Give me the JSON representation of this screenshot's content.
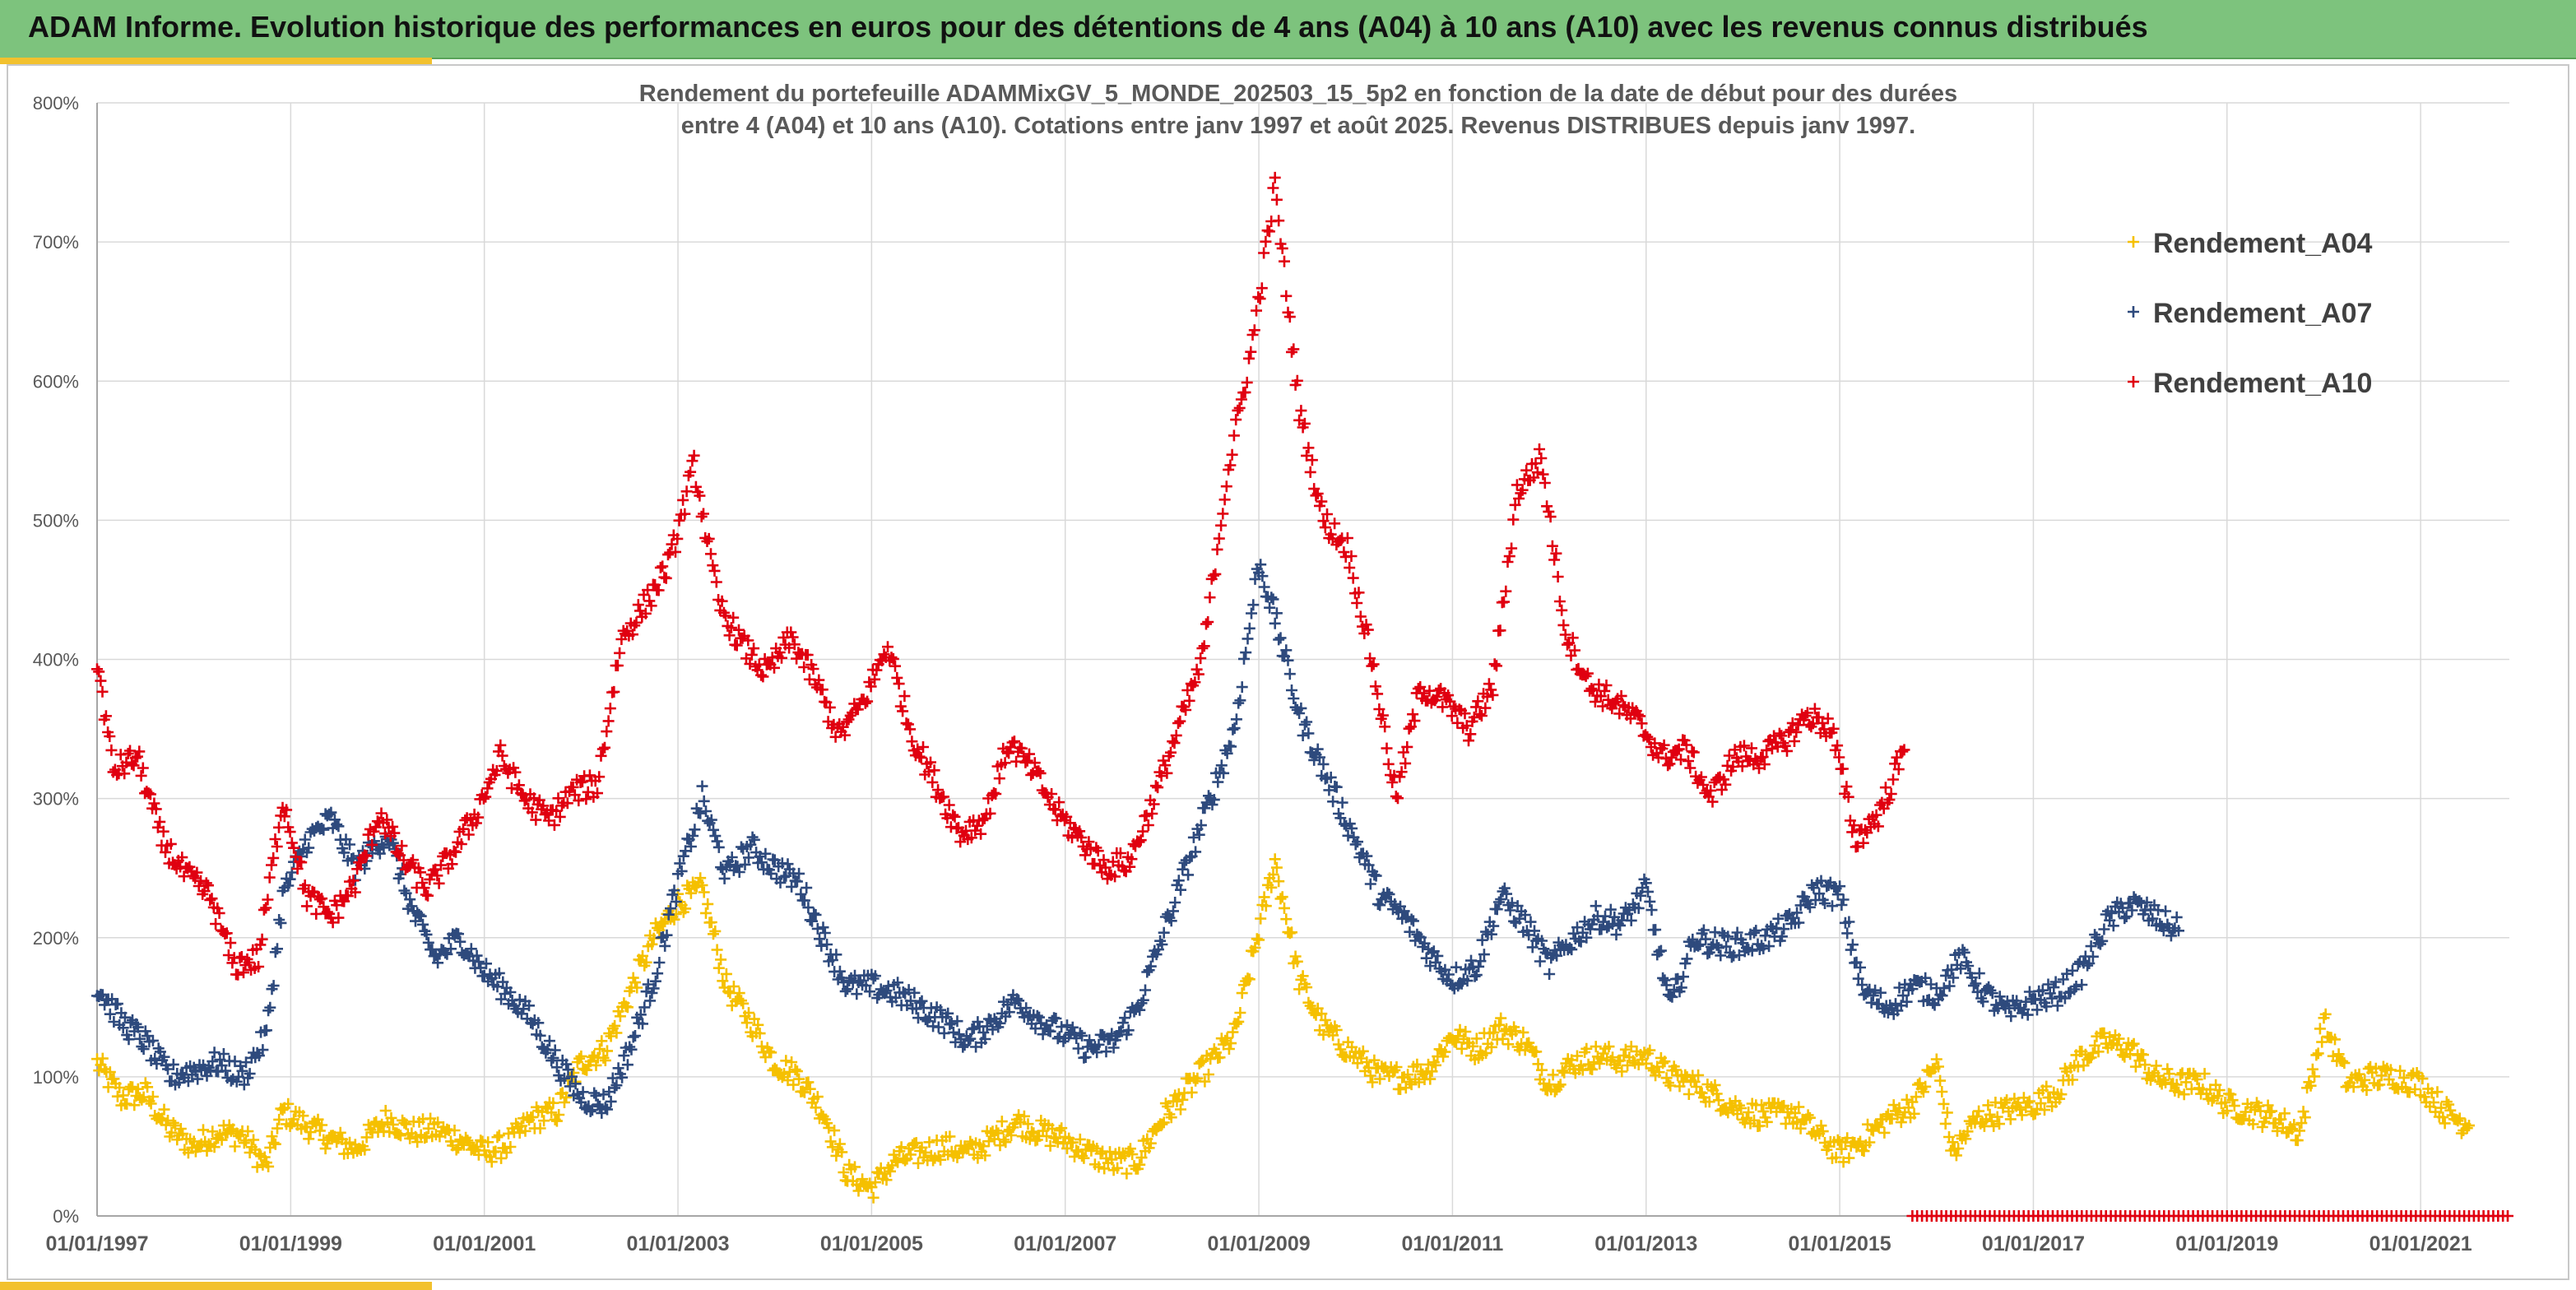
{
  "header": {
    "title": "ADAM Informe. Evolution historique des performances en euros pour des détentions de 4 ans (A04) à 10 ans (A10) avec les revenus connus distribués"
  },
  "chart_data": {
    "type": "scatter",
    "title_line1": "Rendement du portefeuille ADAMMixGV_5_MONDE_202503_15_5p2  en fonction de la date de début pour des durées",
    "title_line2": "entre 4 (A04) et 10 ans (A10). Cotations entre janv 1997 et août 2025. Revenus DISTRIBUES depuis janv 1997.",
    "xlabel": "",
    "ylabel": "",
    "x_range": [
      "01/01/1997",
      "01/06/2021"
    ],
    "ylim": [
      0,
      800
    ],
    "y_unit": "%",
    "y_ticks": [
      "0%",
      "100%",
      "200%",
      "300%",
      "400%",
      "500%",
      "600%",
      "700%",
      "800%"
    ],
    "x_ticks": [
      "01/01/1997",
      "01/01/1999",
      "01/01/2001",
      "01/01/2003",
      "01/01/2005",
      "01/01/2007",
      "01/01/2009",
      "01/01/2011",
      "01/01/2013",
      "01/01/2015",
      "01/01/2017",
      "01/01/2019",
      "01/01/2021"
    ],
    "grid": true,
    "legend_position": "top-right",
    "marker": "+",
    "colors": {
      "A04": "#f5c000",
      "A07": "#2e4a7d",
      "A10": "#e00010"
    },
    "series": [
      {
        "name": "Rendement_A04",
        "key": "A04",
        "points": [
          [
            "1997-01",
            110
          ],
          [
            "1997-04",
            85
          ],
          [
            "1997-07",
            88
          ],
          [
            "1997-10",
            62
          ],
          [
            "1998-01",
            50
          ],
          [
            "1998-04",
            60
          ],
          [
            "1998-07",
            58
          ],
          [
            "1998-10",
            35
          ],
          [
            "1998-12",
            75
          ],
          [
            "1999-03",
            65
          ],
          [
            "1999-06",
            55
          ],
          [
            "1999-09",
            48
          ],
          [
            "2000-01",
            70
          ],
          [
            "2000-04",
            60
          ],
          [
            "2000-07",
            62
          ],
          [
            "2000-10",
            55
          ],
          [
            "2001-01",
            45
          ],
          [
            "2001-04",
            52
          ],
          [
            "2001-07",
            70
          ],
          [
            "2001-10",
            75
          ],
          [
            "2002-01",
            110
          ],
          [
            "2002-04",
            120
          ],
          [
            "2002-07",
            160
          ],
          [
            "2002-10",
            200
          ],
          [
            "2003-01",
            225
          ],
          [
            "2003-04",
            235
          ],
          [
            "2003-07",
            165
          ],
          [
            "2003-10",
            140
          ],
          [
            "2004-01",
            110
          ],
          [
            "2004-04",
            100
          ],
          [
            "2004-07",
            75
          ],
          [
            "2004-10",
            30
          ],
          [
            "2005-01",
            20
          ],
          [
            "2005-04",
            40
          ],
          [
            "2005-07",
            45
          ],
          [
            "2005-10",
            50
          ],
          [
            "2006-01",
            45
          ],
          [
            "2006-04",
            55
          ],
          [
            "2006-07",
            68
          ],
          [
            "2006-10",
            60
          ],
          [
            "2007-01",
            55
          ],
          [
            "2007-04",
            45
          ],
          [
            "2007-07",
            38
          ],
          [
            "2007-10",
            40
          ],
          [
            "2008-01",
            70
          ],
          [
            "2008-04",
            90
          ],
          [
            "2008-07",
            110
          ],
          [
            "2008-10",
            130
          ],
          [
            "2009-01",
            205
          ],
          [
            "2009-03",
            255
          ],
          [
            "2009-06",
            170
          ],
          [
            "2009-09",
            135
          ],
          [
            "2010-01",
            115
          ],
          [
            "2010-04",
            100
          ],
          [
            "2010-07",
            100
          ],
          [
            "2010-10",
            105
          ],
          [
            "2011-01",
            130
          ],
          [
            "2011-04",
            120
          ],
          [
            "2011-07",
            135
          ],
          [
            "2011-10",
            125
          ],
          [
            "2012-01",
            95
          ],
          [
            "2012-04",
            110
          ],
          [
            "2012-07",
            115
          ],
          [
            "2012-10",
            112
          ],
          [
            "2013-01",
            115
          ],
          [
            "2013-04",
            100
          ],
          [
            "2013-07",
            95
          ],
          [
            "2013-10",
            85
          ],
          [
            "2014-01",
            75
          ],
          [
            "2014-04",
            72
          ],
          [
            "2014-07",
            75
          ],
          [
            "2014-10",
            60
          ],
          [
            "2015-01",
            45
          ],
          [
            "2015-04",
            55
          ],
          [
            "2015-07",
            70
          ],
          [
            "2015-10",
            80
          ],
          [
            "2016-01",
            110
          ],
          [
            "2016-03",
            45
          ],
          [
            "2016-06",
            70
          ],
          [
            "2016-09",
            75
          ],
          [
            "2017-01",
            80
          ],
          [
            "2017-04",
            90
          ],
          [
            "2017-07",
            115
          ],
          [
            "2017-10",
            125
          ],
          [
            "2018-01",
            120
          ],
          [
            "2018-04",
            100
          ],
          [
            "2018-07",
            95
          ],
          [
            "2018-10",
            95
          ],
          [
            "2019-01",
            80
          ],
          [
            "2019-04",
            75
          ],
          [
            "2019-07",
            70
          ],
          [
            "2019-10",
            60
          ],
          [
            "2020-01",
            140
          ],
          [
            "2020-04",
            95
          ],
          [
            "2020-07",
            100
          ],
          [
            "2020-10",
            100
          ],
          [
            "2021-01",
            95
          ],
          [
            "2021-04",
            75
          ],
          [
            "2021-07",
            65
          ]
        ]
      },
      {
        "name": "Rendement_A07",
        "key": "A07",
        "points": [
          [
            "1997-01",
            165
          ],
          [
            "1997-04",
            140
          ],
          [
            "1997-07",
            125
          ],
          [
            "1997-10",
            100
          ],
          [
            "1998-01",
            105
          ],
          [
            "1998-04",
            110
          ],
          [
            "1998-07",
            100
          ],
          [
            "1998-10",
            130
          ],
          [
            "1998-12",
            230
          ],
          [
            "1999-03",
            270
          ],
          [
            "1999-06",
            285
          ],
          [
            "1999-09",
            250
          ],
          [
            "2000-01",
            275
          ],
          [
            "2000-04",
            220
          ],
          [
            "2000-07",
            185
          ],
          [
            "2000-10",
            200
          ],
          [
            "2001-01",
            175
          ],
          [
            "2001-04",
            160
          ],
          [
            "2001-07",
            140
          ],
          [
            "2001-10",
            110
          ],
          [
            "2002-01",
            85
          ],
          [
            "2002-04",
            80
          ],
          [
            "2002-07",
            120
          ],
          [
            "2002-10",
            170
          ],
          [
            "2003-01",
            240
          ],
          [
            "2003-04",
            300
          ],
          [
            "2003-07",
            245
          ],
          [
            "2003-10",
            265
          ],
          [
            "2004-01",
            250
          ],
          [
            "2004-04",
            240
          ],
          [
            "2004-07",
            200
          ],
          [
            "2004-10",
            165
          ],
          [
            "2005-01",
            165
          ],
          [
            "2005-04",
            160
          ],
          [
            "2005-07",
            150
          ],
          [
            "2005-10",
            140
          ],
          [
            "2006-01",
            125
          ],
          [
            "2006-04",
            140
          ],
          [
            "2006-07",
            155
          ],
          [
            "2006-10",
            140
          ],
          [
            "2007-01",
            130
          ],
          [
            "2007-04",
            120
          ],
          [
            "2007-07",
            125
          ],
          [
            "2007-10",
            150
          ],
          [
            "2008-01",
            200
          ],
          [
            "2008-04",
            250
          ],
          [
            "2008-07",
            300
          ],
          [
            "2008-10",
            350
          ],
          [
            "2009-01",
            470
          ],
          [
            "2009-03",
            430
          ],
          [
            "2009-06",
            360
          ],
          [
            "2009-09",
            320
          ],
          [
            "2010-01",
            270
          ],
          [
            "2010-04",
            230
          ],
          [
            "2010-07",
            215
          ],
          [
            "2010-10",
            190
          ],
          [
            "2011-01",
            170
          ],
          [
            "2011-04",
            180
          ],
          [
            "2011-07",
            230
          ],
          [
            "2011-10",
            210
          ],
          [
            "2012-01",
            180
          ],
          [
            "2012-04",
            200
          ],
          [
            "2012-07",
            215
          ],
          [
            "2012-10",
            210
          ],
          [
            "2013-01",
            235
          ],
          [
            "2013-04",
            150
          ],
          [
            "2013-07",
            200
          ],
          [
            "2013-10",
            195
          ],
          [
            "2014-01",
            195
          ],
          [
            "2014-04",
            200
          ],
          [
            "2014-07",
            210
          ],
          [
            "2014-10",
            235
          ],
          [
            "2015-01",
            230
          ],
          [
            "2015-04",
            160
          ],
          [
            "2015-07",
            150
          ],
          [
            "2015-10",
            165
          ],
          [
            "2016-01",
            160
          ],
          [
            "2016-04",
            185
          ],
          [
            "2016-07",
            160
          ],
          [
            "2016-10",
            145
          ],
          [
            "2017-01",
            155
          ],
          [
            "2017-04",
            160
          ],
          [
            "2017-07",
            175
          ],
          [
            "2017-10",
            210
          ],
          [
            "2018-01",
            225
          ],
          [
            "2018-04",
            215
          ],
          [
            "2018-07",
            205
          ]
        ]
      },
      {
        "name": "Rendement_A10",
        "key": "A10",
        "points": [
          [
            "1997-01",
            400
          ],
          [
            "1997-03",
            320
          ],
          [
            "1997-06",
            330
          ],
          [
            "1997-09",
            270
          ],
          [
            "1997-12",
            245
          ],
          [
            "1998-03",
            230
          ],
          [
            "1998-06",
            180
          ],
          [
            "1998-09",
            185
          ],
          [
            "1998-12",
            300
          ],
          [
            "1999-03",
            230
          ],
          [
            "1999-06",
            215
          ],
          [
            "1999-09",
            240
          ],
          [
            "1999-12",
            290
          ],
          [
            "2000-03",
            255
          ],
          [
            "2000-06",
            235
          ],
          [
            "2000-09",
            260
          ],
          [
            "2000-12",
            290
          ],
          [
            "2001-03",
            330
          ],
          [
            "2001-06",
            300
          ],
          [
            "2001-09",
            285
          ],
          [
            "2001-12",
            305
          ],
          [
            "2002-03",
            310
          ],
          [
            "2002-06",
            415
          ],
          [
            "2002-09",
            440
          ],
          [
            "2002-12",
            470
          ],
          [
            "2003-03",
            540
          ],
          [
            "2003-06",
            440
          ],
          [
            "2003-09",
            410
          ],
          [
            "2003-12",
            390
          ],
          [
            "2004-03",
            415
          ],
          [
            "2004-06",
            385
          ],
          [
            "2004-09",
            345
          ],
          [
            "2004-12",
            370
          ],
          [
            "2005-03",
            410
          ],
          [
            "2005-06",
            345
          ],
          [
            "2005-09",
            310
          ],
          [
            "2005-12",
            275
          ],
          [
            "2006-03",
            285
          ],
          [
            "2006-06",
            340
          ],
          [
            "2006-09",
            320
          ],
          [
            "2006-12",
            290
          ],
          [
            "2007-03",
            270
          ],
          [
            "2007-06",
            250
          ],
          [
            "2007-09",
            255
          ],
          [
            "2007-12",
            300
          ],
          [
            "2008-03",
            350
          ],
          [
            "2008-06",
            400
          ],
          [
            "2008-09",
            530
          ],
          [
            "2008-12",
            620
          ],
          [
            "2009-03",
            740
          ],
          [
            "2009-06",
            580
          ],
          [
            "2009-09",
            500
          ],
          [
            "2009-12",
            480
          ],
          [
            "2010-03",
            400
          ],
          [
            "2010-06",
            300
          ],
          [
            "2010-09",
            380
          ],
          [
            "2010-12",
            370
          ],
          [
            "2011-03",
            350
          ],
          [
            "2011-06",
            380
          ],
          [
            "2011-09",
            520
          ],
          [
            "2011-12",
            545
          ],
          [
            "2012-03",
            420
          ],
          [
            "2012-06",
            380
          ],
          [
            "2012-09",
            370
          ],
          [
            "2012-12",
            355
          ],
          [
            "2013-03",
            330
          ],
          [
            "2013-06",
            335
          ],
          [
            "2013-09",
            300
          ],
          [
            "2013-12",
            330
          ],
          [
            "2014-03",
            330
          ],
          [
            "2014-06",
            340
          ],
          [
            "2014-09",
            360
          ],
          [
            "2014-12",
            350
          ],
          [
            "2015-03",
            270
          ],
          [
            "2015-06",
            290
          ],
          [
            "2015-09",
            335
          ]
        ]
      }
    ],
    "baseline_marker_series": {
      "key": "A10",
      "from": "2015-10",
      "to": "2021-12",
      "value": 0
    }
  }
}
